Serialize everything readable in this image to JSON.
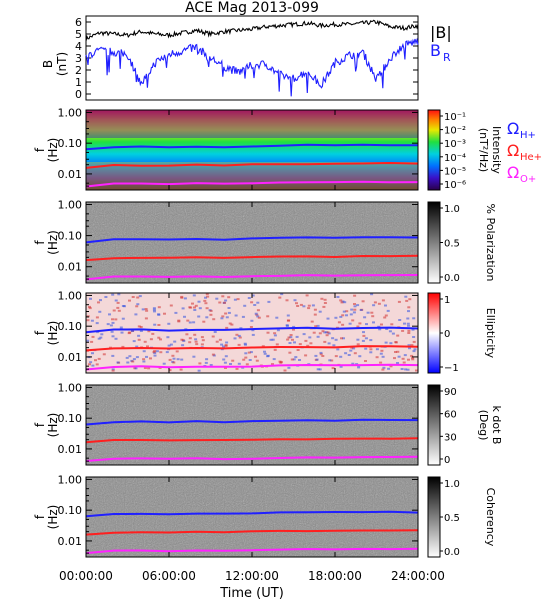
{
  "title": "ACE Mag 2013-099",
  "time_axis": {
    "label": "Time (UT)",
    "ticks": [
      "00:00:00",
      "06:00:00",
      "12:00:00",
      "18:00:00",
      "24:00:00"
    ],
    "range_hours": [
      0,
      24
    ]
  },
  "freq_axis": {
    "label_line1": "f",
    "label_line2": "(Hz)",
    "ticks": [
      "1.00",
      "0.10",
      "0.01"
    ],
    "scale": "log",
    "range_hz": [
      0.003,
      1.2
    ]
  },
  "legend_lines": {
    "h": {
      "label_main": "Ω",
      "label_sub": "H+",
      "color": "#2020ff"
    },
    "he": {
      "label_main": "Ω",
      "label_sub": "He+",
      "color": "#ff1f1f"
    },
    "o": {
      "label_main": "Ω",
      "label_sub": "O+",
      "color": "#ff22ff"
    }
  },
  "colorbars": {
    "intensity": {
      "label_line1": "Intensity",
      "label_line2": "(nT²/Hz)",
      "ticks": [
        "10⁻¹",
        "10⁻²",
        "10⁻³",
        "10⁻⁴",
        "10⁻⁵",
        "10⁻⁶"
      ]
    },
    "polarization": {
      "label": "% Polarization",
      "ticks": [
        "1.0",
        "0.5",
        "0.0"
      ]
    },
    "ellipticity": {
      "label": "Ellipticity",
      "ticks": [
        "1",
        "0",
        "−1"
      ]
    },
    "kdotb": {
      "label_line1": "k dot B",
      "label_line2": "(Deg)",
      "ticks": [
        "90",
        "60",
        "30",
        "0"
      ]
    },
    "coherency": {
      "label": "Coherency",
      "ticks": [
        "1.0",
        "0.5",
        "0.0"
      ]
    }
  },
  "chart_data": [
    {
      "type": "line",
      "title": "ACE Mag 2013-099",
      "ylabel": "B (nT)",
      "ylim": [
        -0.5,
        6.5
      ],
      "yticks": [
        "6",
        "5",
        "4",
        "3",
        "2",
        "1",
        "0"
      ],
      "x_hours": [
        0,
        1,
        2,
        3,
        4,
        5,
        6,
        7,
        8,
        9,
        10,
        11,
        12,
        13,
        14,
        15,
        16,
        17,
        18,
        19,
        20,
        21,
        22,
        23,
        24
      ],
      "series": [
        {
          "name": "|B|",
          "color": "#000000",
          "values": [
            4.6,
            5.1,
            5.0,
            4.9,
            5.2,
            5.0,
            4.9,
            5.1,
            5.3,
            5.0,
            5.2,
            5.3,
            5.4,
            5.6,
            5.7,
            5.8,
            5.9,
            5.7,
            5.8,
            5.8,
            5.9,
            6.0,
            5.6,
            5.5,
            5.7
          ]
        },
        {
          "name": "B_R",
          "color": "#1f1fff",
          "values": [
            3.2,
            3.6,
            3.5,
            3.3,
            0.8,
            2.6,
            3.3,
            3.6,
            3.9,
            3.0,
            2.3,
            1.8,
            2.4,
            2.5,
            1.6,
            1.3,
            1.9,
            0.7,
            2.6,
            3.2,
            3.5,
            1.2,
            3.0,
            4.1,
            4.4
          ]
        }
      ]
    },
    {
      "type": "heatmap",
      "name": "Intensity spectrogram",
      "colorbar": "intensity",
      "x": "time (UT hours 0–24)",
      "y": "frequency (Hz, log 0.003–1.2)",
      "description_values": "intensity ~10^-1 to 10^-2 nT²/Hz near 0.005–0.01 Hz, decreasing to ~10^-5 at 1 Hz"
    },
    {
      "type": "heatmap",
      "name": "Polarization",
      "colorbar": "polarization",
      "value_range": [
        0,
        1
      ]
    },
    {
      "type": "heatmap",
      "name": "Ellipticity",
      "colorbar": "ellipticity",
      "value_range": [
        -1,
        1
      ]
    },
    {
      "type": "heatmap",
      "name": "k dot B",
      "colorbar": "kdotb",
      "value_range": [
        0,
        90
      ]
    },
    {
      "type": "heatmap",
      "name": "Coherency",
      "colorbar": "coherency",
      "value_range": [
        0,
        1
      ]
    },
    {
      "type": "line",
      "name": "Gyrofrequency overlays (Hz)",
      "x_hours": [
        0,
        2,
        4,
        6,
        8,
        10,
        12,
        14,
        16,
        18,
        20,
        22,
        24
      ],
      "series": [
        {
          "name": "H+",
          "color": "#2020ff",
          "values": [
            0.062,
            0.076,
            0.077,
            0.074,
            0.078,
            0.076,
            0.079,
            0.083,
            0.086,
            0.085,
            0.088,
            0.088,
            0.086
          ]
        },
        {
          "name": "He+",
          "color": "#ff1f1f",
          "values": [
            0.016,
            0.019,
            0.019,
            0.019,
            0.02,
            0.019,
            0.02,
            0.021,
            0.021,
            0.021,
            0.022,
            0.022,
            0.022
          ]
        },
        {
          "name": "O+",
          "color": "#ff22ff",
          "values": [
            0.004,
            0.0048,
            0.0049,
            0.0047,
            0.0049,
            0.0048,
            0.0049,
            0.0052,
            0.0054,
            0.0053,
            0.0055,
            0.0055,
            0.0054
          ]
        }
      ]
    }
  ]
}
